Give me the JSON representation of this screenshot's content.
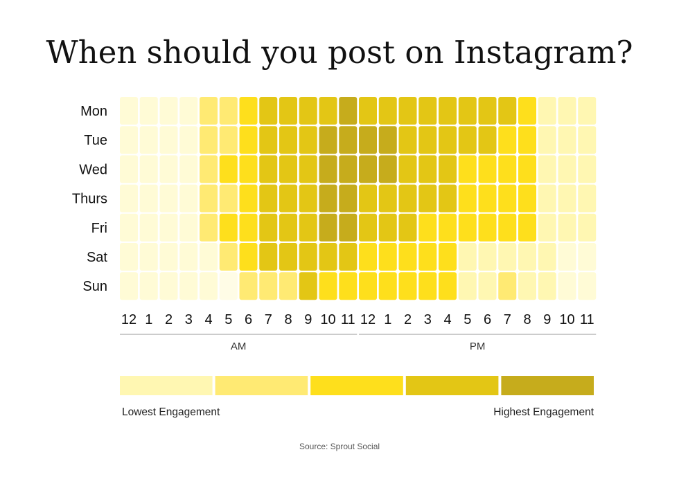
{
  "chart_data": {
    "type": "heatmap",
    "title": "When should you post on Instagram?",
    "y_categories": [
      "Mon",
      "Tue",
      "Wed",
      "Thurs",
      "Fri",
      "Sat",
      "Sun"
    ],
    "x_tick_labels": [
      "12",
      "1",
      "2",
      "3",
      "4",
      "5",
      "6",
      "7",
      "8",
      "9",
      "10",
      "11",
      "12",
      "1",
      "2",
      "3",
      "4",
      "5",
      "6",
      "7",
      "8",
      "9",
      "10",
      "11"
    ],
    "x_groups": [
      {
        "label": "AM",
        "from": 0,
        "to": 11
      },
      {
        "label": "PM",
        "from": 12,
        "to": 23
      }
    ],
    "values": [
      [
        0,
        0,
        0,
        0,
        2,
        2,
        3,
        4,
        4,
        4,
        4,
        5,
        4,
        4,
        4,
        4,
        4,
        4,
        4,
        4,
        3,
        1,
        1,
        1
      ],
      [
        0,
        0,
        0,
        0,
        2,
        2,
        3,
        4,
        4,
        4,
        5,
        5,
        5,
        5,
        4,
        4,
        4,
        4,
        4,
        3,
        3,
        1,
        1,
        1
      ],
      [
        0,
        0,
        0,
        0,
        2,
        3,
        3,
        4,
        4,
        4,
        5,
        5,
        5,
        5,
        4,
        4,
        4,
        3,
        3,
        3,
        3,
        1,
        1,
        1
      ],
      [
        0,
        0,
        0,
        0,
        2,
        2,
        3,
        4,
        4,
        4,
        5,
        5,
        4,
        4,
        4,
        4,
        4,
        3,
        3,
        3,
        3,
        1,
        1,
        1
      ],
      [
        0,
        0,
        0,
        0,
        2,
        3,
        3,
        4,
        4,
        4,
        5,
        5,
        4,
        4,
        4,
        3,
        3,
        3,
        3,
        3,
        3,
        1,
        1,
        1
      ],
      [
        0,
        0,
        0,
        0,
        0,
        2,
        3,
        4,
        4,
        4,
        4,
        4,
        3,
        3,
        3,
        3,
        3,
        1,
        1,
        1,
        1,
        1,
        0,
        0
      ],
      [
        0,
        0,
        0,
        0,
        0,
        -1,
        2,
        2,
        2,
        4,
        3,
        3,
        3,
        3,
        3,
        3,
        3,
        1,
        1,
        2,
        1,
        1,
        0,
        0
      ]
    ],
    "scale": {
      "levels": 5,
      "colors": [
        "#FFF7B2",
        "#FFEA73",
        "#FEDF1C",
        "#E3C615",
        "#C6AC1C"
      ],
      "extra_colors": {
        "faint": "#FFFCE6",
        "base": "#FFFBD6"
      },
      "low_label": "Lowest Engagement",
      "high_label": "Highest Engagement"
    },
    "source": "Source: Sprout Social"
  }
}
